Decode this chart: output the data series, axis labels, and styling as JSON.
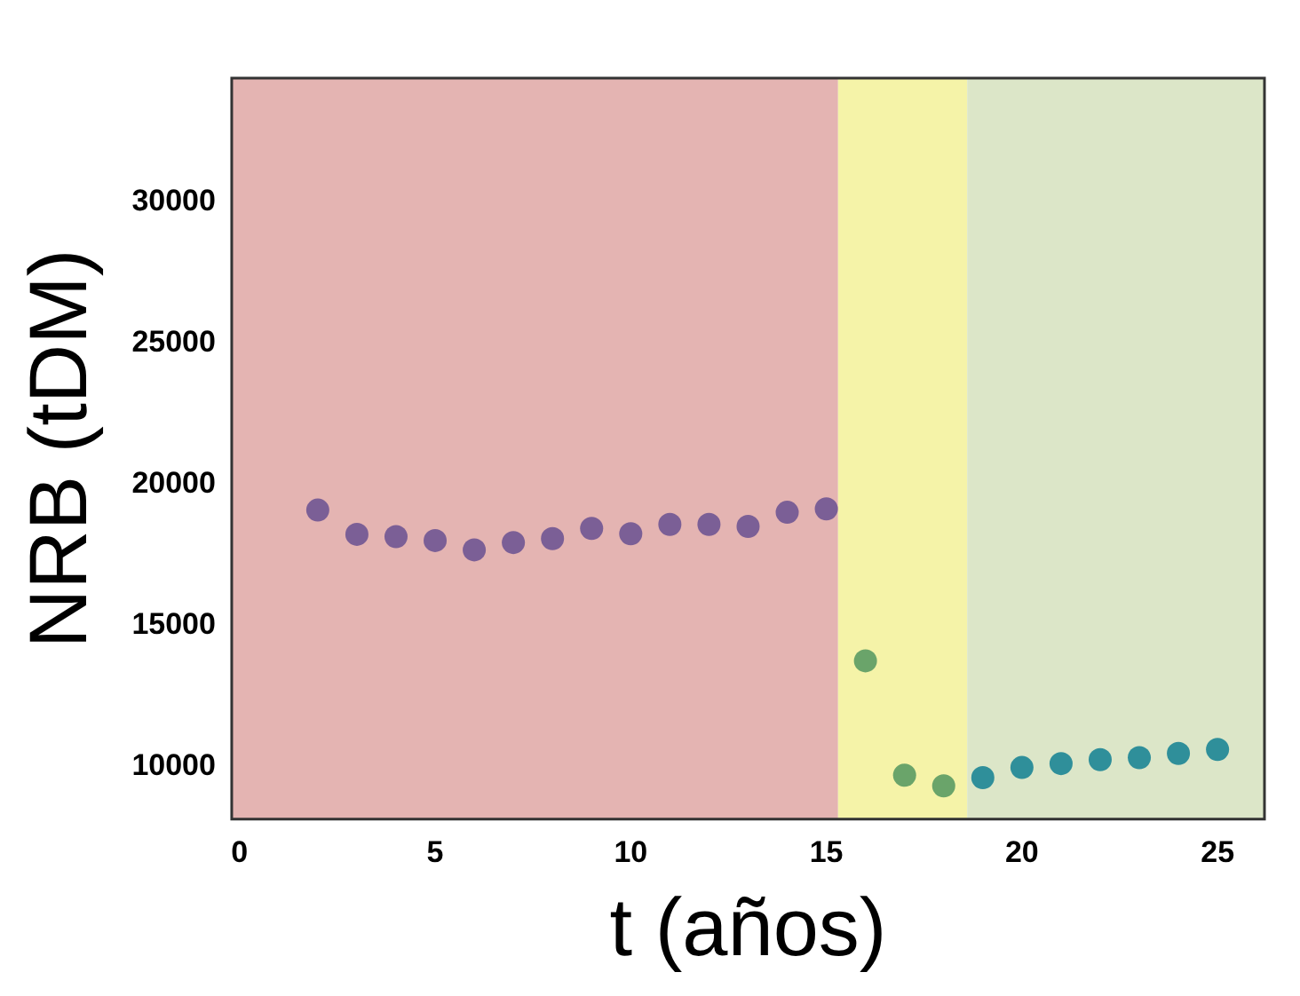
{
  "chart_data": {
    "type": "scatter",
    "xlabel": "t (años)",
    "ylabel": "NRB (tDM)",
    "xlim": [
      -0.2,
      26.2
    ],
    "xticks": [
      0,
      5,
      10,
      15,
      20,
      25
    ],
    "ylim": [
      8150,
      34400
    ],
    "yticks": [
      10000,
      15000,
      20000,
      25000,
      30000
    ],
    "grid": false,
    "legend": false,
    "marker": "circle",
    "series": [
      {
        "color": "#7b5f96",
        "x": [
          2,
          3,
          4,
          5,
          6,
          7,
          8,
          9,
          10,
          11,
          12,
          13,
          14,
          15
        ],
        "values": [
          19100,
          18240,
          18160,
          18020,
          17690,
          17950,
          18090,
          18450,
          18260,
          18590,
          18590,
          18520,
          19020,
          19140
        ]
      },
      {
        "color": "#6aa46a",
        "x": [
          16,
          17,
          18
        ],
        "values": [
          13760,
          9710,
          9330
        ]
      },
      {
        "color": "#2f8f9a",
        "x": [
          19,
          20,
          21,
          22,
          23,
          24,
          25
        ],
        "values": [
          9620,
          9980,
          10120,
          10260,
          10330,
          10480,
          10620
        ]
      }
    ],
    "bands": [
      {
        "axis": "x",
        "from": -0.2,
        "to": 15.3,
        "color": "#e4b4b2"
      },
      {
        "axis": "x",
        "from": 15.3,
        "to": 18.6,
        "color": "#f5f3a8"
      },
      {
        "axis": "x",
        "from": 18.6,
        "to": 26.2,
        "color": "#dce6c8"
      }
    ]
  }
}
